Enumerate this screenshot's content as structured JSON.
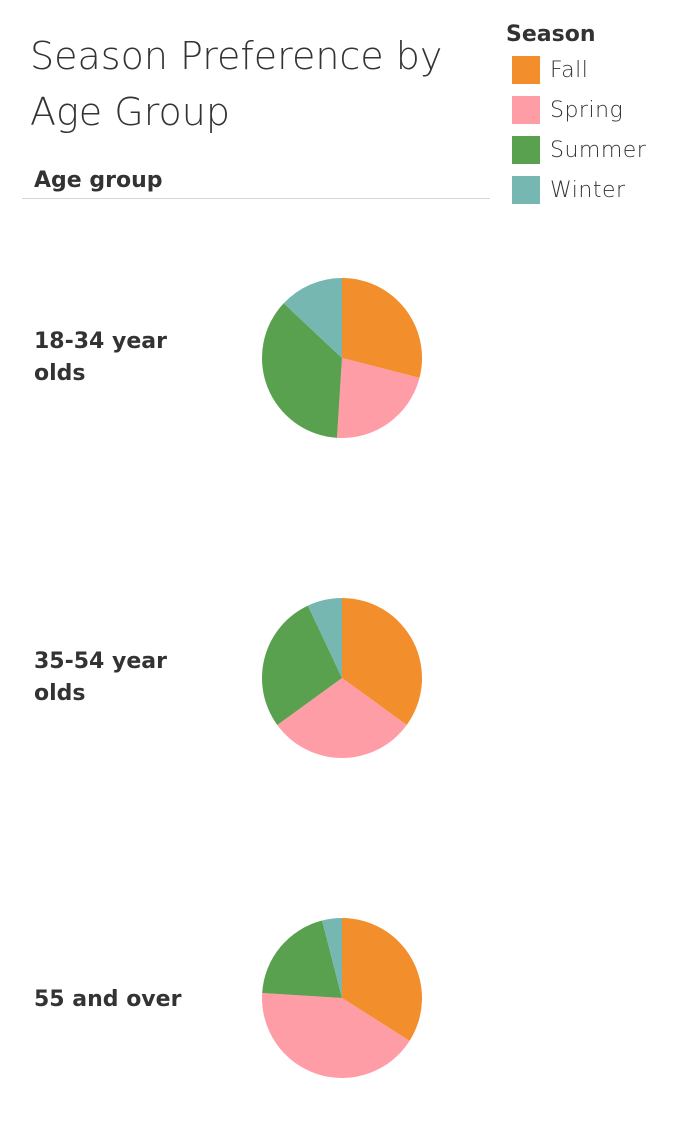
{
  "title": "Season Preference by Age Group",
  "row_header": "Age group",
  "legend": {
    "title": "Season",
    "items": [
      {
        "label": "Fall",
        "color": "#F28E2B"
      },
      {
        "label": "Spring",
        "color": "#FF9DA7"
      },
      {
        "label": "Summer",
        "color": "#59A14F"
      },
      {
        "label": "Winter",
        "color": "#76B7B2"
      }
    ]
  },
  "chart_data": {
    "type": "pie",
    "title": "Season Preference by Age Group",
    "row_dimension": "Age group",
    "legend_title": "Season",
    "legend_placement": "top-right",
    "categories": [
      "Fall",
      "Spring",
      "Summer",
      "Winter"
    ],
    "colors": [
      "#F28E2B",
      "#FF9DA7",
      "#59A14F",
      "#76B7B2"
    ],
    "groups": [
      {
        "label": "18-34 year olds",
        "values": [
          29,
          22,
          36,
          13
        ]
      },
      {
        "label": "35-54 year olds",
        "values": [
          35,
          30,
          28,
          7
        ]
      },
      {
        "label": "55 and over",
        "values": [
          34,
          42,
          20,
          4
        ]
      }
    ]
  }
}
